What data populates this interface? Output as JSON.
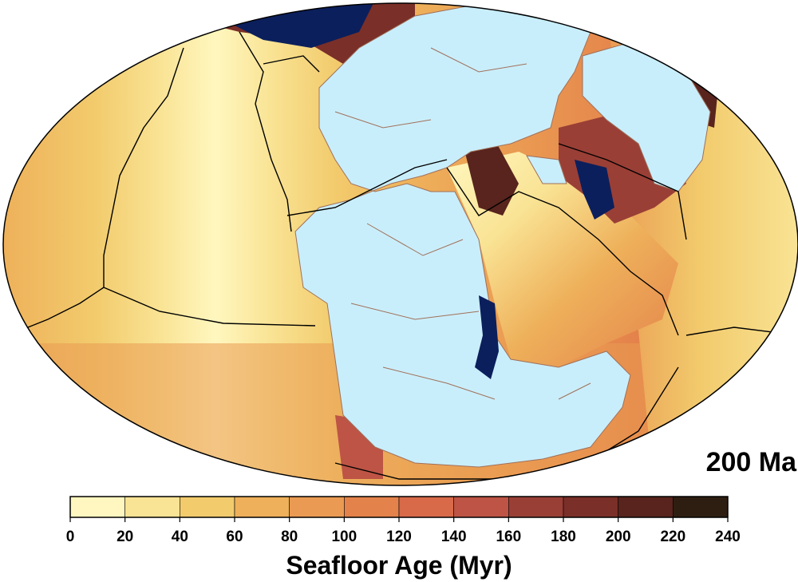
{
  "map": {
    "time_label": "200 Ma",
    "projection": "mollweide-like ellipse",
    "continent_color": "#c9eefb",
    "boundary_color": "#000000",
    "coastline_color": "#a0705a"
  },
  "colorbar": {
    "title": "Seafloor Age (Myr)",
    "ticks": [
      "0",
      "20",
      "40",
      "60",
      "80",
      "100",
      "120",
      "140",
      "160",
      "180",
      "200",
      "220",
      "240"
    ],
    "colors": [
      "#fff7bf",
      "#f9e394",
      "#f2cb6d",
      "#eeb05a",
      "#ea9a52",
      "#e4824b",
      "#d86a49",
      "#bd5445",
      "#9a3f36",
      "#7a2f28",
      "#58241d",
      "#2e1e12"
    ]
  }
}
